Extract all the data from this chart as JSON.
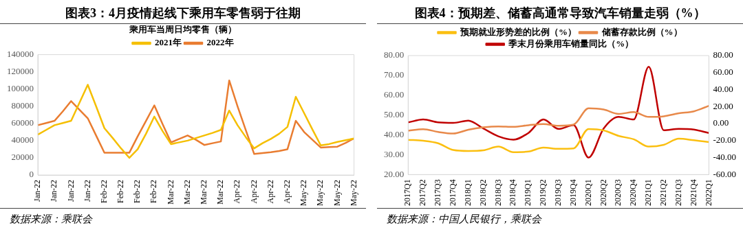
{
  "chart_data": [
    {
      "type": "line",
      "title": "图表3：4月疫情起线下乘用车零售弱于往期",
      "legend_title": "乘用车当周日均零售（辆）",
      "categories": [
        "Jan-22",
        null,
        "Jan-22",
        null,
        "Jan-22",
        null,
        "Jan-22",
        null,
        "Feb-22",
        null,
        "Feb-22",
        null,
        "Feb-22",
        null,
        "Feb-22",
        null,
        "Mar-22",
        null,
        "Mar-22",
        null,
        "Mar-22",
        null,
        "Mar-22",
        null,
        "Apr-22",
        null,
        "Apr-22",
        null,
        "Apr-22",
        null,
        "Apr-22",
        null,
        "May-22",
        null,
        "May-22",
        null,
        "May-22",
        null,
        "May-22"
      ],
      "series": [
        {
          "name": "2021年",
          "color": "#f5bf00",
          "values": [
            47000,
            52500,
            58000,
            60500,
            63000,
            84000,
            105000,
            80000,
            54500,
            43000,
            31000,
            20000,
            30000,
            48000,
            68000,
            51000,
            36000,
            38000,
            40000,
            43000,
            46000,
            49000,
            52500,
            75000,
            58000,
            44000,
            31000,
            37000,
            42000,
            48000,
            56000,
            91000,
            72000,
            53000,
            34500,
            36000,
            38500,
            40500,
            42500
          ]
        },
        {
          "name": "2022年",
          "color": "#e97c30",
          "values": [
            58000,
            60500,
            63000,
            74000,
            86000,
            76000,
            66000,
            46000,
            26000,
            26000,
            26000,
            26000,
            45000,
            63000,
            81000,
            59000,
            38000,
            42000,
            46000,
            41000,
            35000,
            37000,
            39000,
            110000,
            80000,
            52000,
            24500,
            25500,
            26500,
            28000,
            30000,
            63000,
            50000,
            41000,
            32000,
            32500,
            33000,
            37500,
            42500
          ]
        }
      ],
      "ylim": [
        0,
        140000
      ],
      "yticks": [
        0,
        20000,
        40000,
        60000,
        80000,
        100000,
        120000,
        140000
      ],
      "grid": false,
      "legend": "top",
      "marker": "none",
      "line_style": "solid",
      "annotations": [
        "数据来源：乘联会"
      ]
    },
    {
      "type": "line",
      "title": "图表4：预期差、储蓄高通常导致汽车销量走弱（%）",
      "categories": [
        "2017Q1",
        "2017Q2",
        "2017Q3",
        "2017Q4",
        "2018Q1",
        "2018Q2",
        "2018Q3",
        "2018Q4",
        "2019Q1",
        "2019Q2",
        "2019Q3",
        "2019Q4",
        "2020Q1",
        "2020Q2",
        "2020Q3",
        "2020Q4",
        "2021Q1",
        "2021Q2",
        "2021Q3",
        "2021Q4",
        "2022Q1"
      ],
      "series": [
        {
          "name": "预期就业形势差的比例（%）",
          "color": "#fbbf10",
          "values": [
            37.5,
            37.1,
            35.8,
            32.4,
            31.9,
            32.2,
            34.1,
            31.3,
            31.6,
            33.6,
            33.0,
            33.2,
            43.0,
            42.3,
            39.5,
            37.8,
            34.1,
            35.0,
            38.1,
            37.3,
            36.4
          ]
        },
        {
          "name": "储蓄存款比例（%）",
          "color": "#e8894a",
          "values": [
            42.1,
            42.9,
            41.5,
            40.7,
            42.6,
            43.8,
            44.3,
            44.1,
            44.9,
            45.5,
            44.6,
            45.2,
            53.4,
            52.8,
            50.6,
            51.5,
            49.1,
            49.4,
            50.9,
            51.9,
            54.7
          ]
        },
        {
          "name": "季末月份乘用车销量同比（%）",
          "color": "#c00000",
          "axis": "y2",
          "values": [
            1.4,
            4.8,
            1.4,
            0.8,
            3.5,
            -5.8,
            -15,
            -18.9,
            -11,
            4.8,
            -6.3,
            -1.8,
            -40,
            -5.8,
            8,
            4.8,
            66.8,
            -7.9,
            -6.3,
            -7.1,
            -11
          ]
        }
      ],
      "ylim": [
        20,
        80
      ],
      "yticks": [
        {
          "value": 20,
          "label": "20.00"
        },
        {
          "value": 30,
          "label": "30.00"
        },
        {
          "value": 40,
          "label": "40.00"
        },
        {
          "value": 50,
          "label": "50.00"
        },
        {
          "value": 60,
          "label": "60.00"
        },
        {
          "value": 70,
          "label": "70.00"
        },
        {
          "value": 80,
          "label": "80.00"
        }
      ],
      "y2lim": [
        -60,
        80
      ],
      "y2ticks": [
        {
          "value": -60,
          "label": "-60.00"
        },
        {
          "value": -40,
          "label": "-40.00"
        },
        {
          "value": -20,
          "label": "-20.00"
        },
        {
          "value": 0,
          "label": "0.00"
        },
        {
          "value": 20,
          "label": "20.00"
        },
        {
          "value": 40,
          "label": "40.00"
        },
        {
          "value": 60,
          "label": "60.00"
        },
        {
          "value": 80,
          "label": "80.00"
        }
      ],
      "grid": false,
      "legend": "top",
      "marker": "none",
      "line_style": "solid",
      "annotations": [
        "数据来源：中国人民银行，乘联会"
      ]
    }
  ]
}
